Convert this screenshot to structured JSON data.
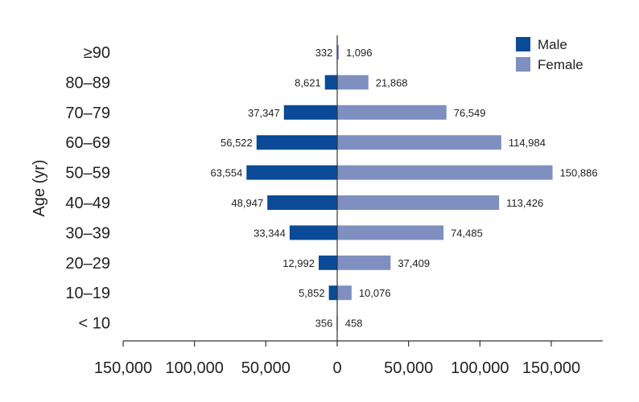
{
  "chart_data": {
    "type": "bar",
    "orientation": "horizontal-diverging",
    "categories": [
      "<10",
      "10–19",
      "20–29",
      "30–39",
      "40–49",
      "50–59",
      "60–69",
      "70–79",
      "80–89",
      "≥90"
    ],
    "category_labels": [
      "< 10",
      "10–19",
      "20–29",
      "30–39",
      "40–49",
      "50–59",
      "60–69",
      "70–79",
      "80–89",
      "≥90"
    ],
    "series": [
      {
        "name": "Male",
        "color": "#0a4a96",
        "values": [
          356,
          5852,
          12992,
          33344,
          48947,
          63554,
          56522,
          37347,
          8621,
          332
        ],
        "labels": [
          "356",
          "5,852",
          "12,992",
          "33,344",
          "48,947",
          "63,554",
          "56,522",
          "37,347",
          "8,621",
          "332"
        ]
      },
      {
        "name": "Female",
        "color": "#7f8fc0",
        "values": [
          458,
          10076,
          37409,
          74485,
          113426,
          150886,
          114984,
          76549,
          21868,
          1096
        ],
        "labels": [
          "458",
          "10,076",
          "37,409",
          "74,485",
          "113,426",
          "150,886",
          "114,984",
          "76,549",
          "21,868",
          "1,096"
        ]
      }
    ],
    "xlim": [
      -150000,
      186000
    ],
    "xticks": [
      -150000,
      -100000,
      -50000,
      0,
      50000,
      100000,
      150000
    ],
    "xtick_labels": [
      "150,000",
      "100,000",
      "50,000",
      "0",
      "50,000",
      "100,000",
      "150,000"
    ],
    "ylabel": "Age (yr)",
    "xlabel": "",
    "title": "",
    "legend_position": "top-right",
    "grid": false
  }
}
